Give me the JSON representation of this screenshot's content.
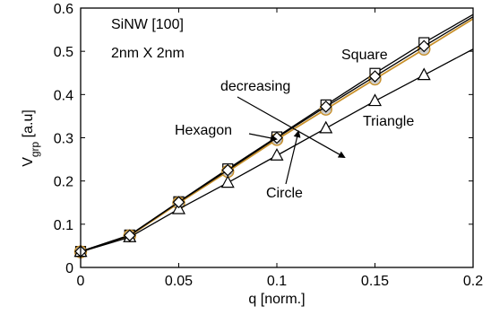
{
  "chart_data": {
    "type": "line",
    "title": "",
    "xlabel": "q [norm.]",
    "ylabel": "V_grp [a.u]",
    "xlim": [
      0,
      0.2
    ],
    "ylim": [
      0,
      0.6
    ],
    "xticks": [
      0,
      0.05,
      0.1,
      0.15,
      0.2
    ],
    "xtick_labels": [
      "0",
      "0.05",
      "0.1",
      "0.15",
      "0.2"
    ],
    "yticks": [
      0,
      0.1,
      0.2,
      0.3,
      0.4,
      0.5,
      0.6
    ],
    "ytick_labels": [
      "0",
      "0.1",
      "0.2",
      "0.3",
      "0.4",
      "0.5",
      "0.6"
    ],
    "grid": false,
    "annotations": {
      "box_line1": "SiNW [100]",
      "box_line2": "2nm X 2nm",
      "square": "Square",
      "decreasing": "decreasing",
      "hexagon": "Hexagon",
      "triangle": "Triangle",
      "circle": "Circle"
    },
    "series": [
      {
        "label_ref": "Square",
        "marker": "square",
        "color": "#000000",
        "x": [
          0,
          0.025,
          0.05,
          0.075,
          0.1,
          0.125,
          0.15,
          0.175
        ],
        "y": [
          0.037,
          0.075,
          0.152,
          0.228,
          0.302,
          0.376,
          0.449,
          0.52
        ],
        "line_end": [
          0.2,
          0.585
        ]
      },
      {
        "label_ref": "Hexagon",
        "marker": "diamond",
        "color": "#000000",
        "x": [
          0,
          0.025,
          0.05,
          0.075,
          0.1,
          0.125,
          0.15,
          0.175
        ],
        "y": [
          0.037,
          0.074,
          0.151,
          0.225,
          0.3,
          0.372,
          0.442,
          0.512
        ],
        "line_end": [
          0.2,
          0.58
        ]
      },
      {
        "label_ref": "Circle",
        "marker": "circle",
        "color": "#c8902a",
        "x": [
          0,
          0.025,
          0.05,
          0.075,
          0.1,
          0.125,
          0.15,
          0.175
        ],
        "y": [
          0.036,
          0.073,
          0.149,
          0.222,
          0.296,
          0.366,
          0.436,
          0.505
        ],
        "line_end": [
          0.2,
          0.575
        ]
      },
      {
        "label_ref": "Triangle",
        "marker": "triangle",
        "color": "#000000",
        "x": [
          0,
          0.025,
          0.05,
          0.075,
          0.1,
          0.125,
          0.15,
          0.175
        ],
        "y": [
          0.036,
          0.07,
          0.135,
          0.196,
          0.259,
          0.322,
          0.385,
          0.445
        ],
        "line_end": [
          0.2,
          0.505
        ]
      }
    ]
  }
}
